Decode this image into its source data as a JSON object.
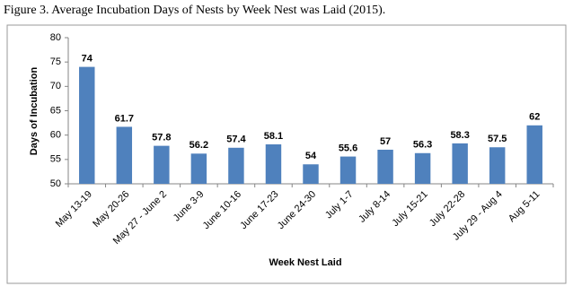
{
  "chart_data": {
    "type": "bar",
    "title": "Figure 3.  Average Incubation Days of Nests by Week Nest was Laid (2015).",
    "x_label": "Week Nest Laid",
    "y_label": "Days of Incubation",
    "categories": [
      "May 13-19",
      "May 20-26",
      "May 27 - June 2",
      "June 3-9",
      "June 10-16",
      "June 17-23",
      "June 24-30",
      "July 1-7",
      "July 8-14",
      "July 15-21",
      "July 22-28",
      "July 29 - Aug 4",
      "Aug 5-11"
    ],
    "values": [
      74,
      61.7,
      57.8,
      56.2,
      57.4,
      58.1,
      54,
      55.6,
      57,
      56.3,
      58.3,
      57.5,
      62
    ],
    "color": "#4f81bd",
    "ylim": [
      50,
      80
    ],
    "yticks": [
      50,
      55,
      60,
      65,
      70,
      75,
      80
    ],
    "grid": false
  }
}
